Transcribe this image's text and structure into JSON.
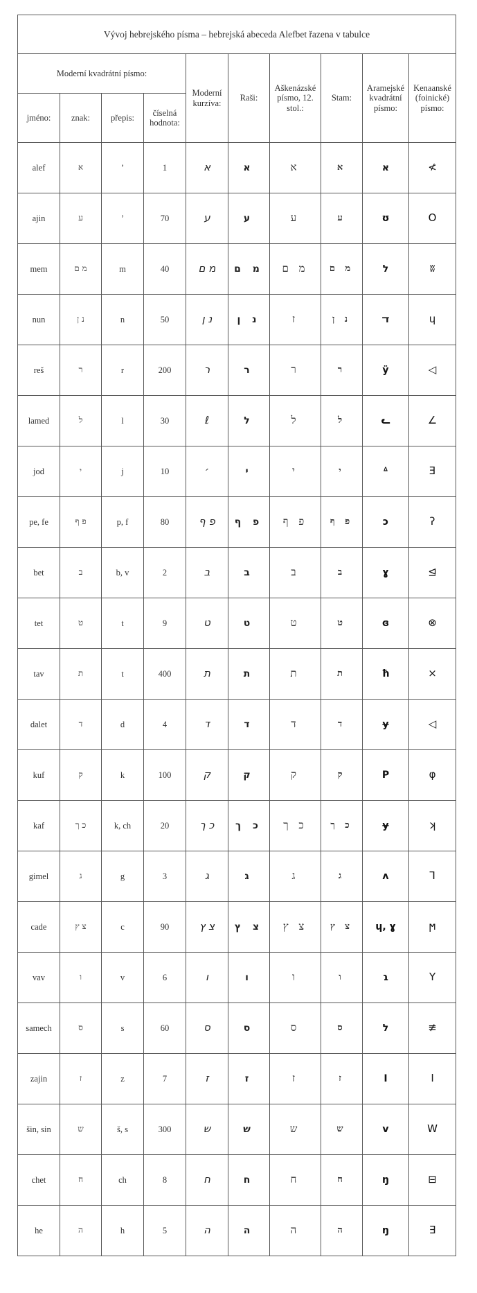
{
  "title": "Vývoj hebrejského písma – hebrejská abeceda Alefbet řazena v tabulce",
  "headers": {
    "group": "Moderní kvadrátní písmo:",
    "name": "jméno:",
    "sign": "znak:",
    "transcription": "přepis:",
    "value": "číselná hodnota:",
    "cursive": "Moderní kurzíva:",
    "rashi": "Raši:",
    "ashkenazi": "Aškenázské písmo, 12. stol.:",
    "stam": "Stam:",
    "aramaic": "Aramejské kvadrátní písmo:",
    "canaanite": "Kenaanské (foinické) písmo:"
  },
  "rows": [
    {
      "name": "alef",
      "sign": "א",
      "tr": "’",
      "value": "1",
      "cursive": "א",
      "rashi": "א",
      "ashkenazi": "א",
      "stam": "א",
      "aramaic": "א",
      "canaanite": "≮"
    },
    {
      "name": "ajin",
      "sign": "ע",
      "tr": "’",
      "value": "70",
      "cursive": "ע",
      "rashi": "ע",
      "ashkenazi": "ע",
      "stam": "ע",
      "aramaic": "ʊ",
      "canaanite": "O"
    },
    {
      "name": "mem",
      "sign": "מ ם",
      "tr": "m",
      "value": "40",
      "cursive": "מ ם",
      "rashi": "מ ם",
      "ashkenazi": "מ ם",
      "stam": "מ ם",
      "aramaic": "ל",
      "canaanite": "ʬ"
    },
    {
      "name": "nun",
      "sign": "נ ן",
      "tr": "n",
      "value": "50",
      "cursive": "נ ן",
      "rashi": "נ ן",
      "ashkenazi": "ז",
      "stam": "נ ן",
      "aramaic": "ﬢ",
      "canaanite": "ɥ"
    },
    {
      "name": "reš",
      "sign": "ר",
      "tr": "r",
      "value": "200",
      "cursive": "ר",
      "rashi": "ר",
      "ashkenazi": "ר",
      "stam": "ר",
      "aramaic": "ÿ",
      "canaanite": "◁"
    },
    {
      "name": "lamed",
      "sign": "ל",
      "tr": "l",
      "value": "30",
      "cursive": "ℓ",
      "rashi": "ל",
      "ashkenazi": "ל",
      "stam": "ל",
      "aramaic": "ᓚ",
      "canaanite": "∠"
    },
    {
      "name": "jod",
      "sign": "י",
      "tr": "j",
      "value": "10",
      "cursive": "׳",
      "rashi": "י",
      "ashkenazi": "י",
      "stam": "י",
      "aramaic": "ᐞ",
      "canaanite": "Ǝ"
    },
    {
      "name": "pe, fe",
      "sign": "פ ף",
      "tr": "p, f",
      "value": "80",
      "cursive": "פ ף",
      "rashi": "פ ף",
      "ashkenazi": "פ ף",
      "stam": "פ ף",
      "aramaic": "ɔ",
      "canaanite": "ʔ"
    },
    {
      "name": "bet",
      "sign": "ב",
      "tr": "b, v",
      "value": "2",
      "cursive": "ב",
      "rashi": "ב",
      "ashkenazi": "ב",
      "stam": "ב",
      "aramaic": "ɣ",
      "canaanite": "⊴"
    },
    {
      "name": "tet",
      "sign": "ט",
      "tr": "t",
      "value": "9",
      "cursive": "ט",
      "rashi": "ט",
      "ashkenazi": "ט",
      "stam": "ט",
      "aramaic": "ɞ",
      "canaanite": "⊗"
    },
    {
      "name": "tav",
      "sign": "ת",
      "tr": "t",
      "value": "400",
      "cursive": "ת",
      "rashi": "ת",
      "ashkenazi": "ת",
      "stam": "ת",
      "aramaic": "ħ",
      "canaanite": "×"
    },
    {
      "name": "dalet",
      "sign": "ד",
      "tr": "d",
      "value": "4",
      "cursive": "ד",
      "rashi": "ד",
      "ashkenazi": "ד",
      "stam": "ד",
      "aramaic": "ɏ",
      "canaanite": "◁"
    },
    {
      "name": "kuf",
      "sign": "ק",
      "tr": "k",
      "value": "100",
      "cursive": "ק",
      "rashi": "ק",
      "ashkenazi": "ק",
      "stam": "ק",
      "aramaic": "Ρ",
      "canaanite": "φ"
    },
    {
      "name": "kaf",
      "sign": "כ ך",
      "tr": "k, ch",
      "value": "20",
      "cursive": "כ ך",
      "rashi": "כ ך",
      "ashkenazi": "כ ך",
      "stam": "כ ך",
      "aramaic": "ɏ",
      "canaanite": "ʞ"
    },
    {
      "name": "gimel",
      "sign": "ג",
      "tr": "g",
      "value": "3",
      "cursive": "ג",
      "rashi": "ג",
      "ashkenazi": "ג",
      "stam": "ג",
      "aramaic": "ʌ",
      "canaanite": "⅂"
    },
    {
      "name": "cade",
      "sign": "צ ץ",
      "tr": "c",
      "value": "90",
      "cursive": "צ ץ",
      "rashi": "צ ץ",
      "ashkenazi": "צ ץ",
      "stam": "צ ץ",
      "aramaic": "ɥ, ɣ",
      "canaanite": "ϻ"
    },
    {
      "name": "vav",
      "sign": "ו",
      "tr": "v",
      "value": "6",
      "cursive": "ו",
      "rashi": "ו",
      "ashkenazi": "ו",
      "stam": "ו",
      "aramaic": "ɿ",
      "canaanite": "Y"
    },
    {
      "name": "samech",
      "sign": "ס",
      "tr": "s",
      "value": "60",
      "cursive": "ס",
      "rashi": "ס",
      "ashkenazi": "ס",
      "stam": "ס",
      "aramaic": "ל",
      "canaanite": "≢"
    },
    {
      "name": "zajin",
      "sign": "ז",
      "tr": "z",
      "value": "7",
      "cursive": "ז",
      "rashi": "ז",
      "ashkenazi": "ז",
      "stam": "ז",
      "aramaic": "I",
      "canaanite": "I"
    },
    {
      "name": "šin, sin",
      "sign": "ש",
      "tr": "š, s",
      "value": "300",
      "cursive": "ש",
      "rashi": "ש",
      "ashkenazi": "ש",
      "stam": "ש",
      "aramaic": "v",
      "canaanite": "W"
    },
    {
      "name": "chet",
      "sign": "ח",
      "tr": "ch",
      "value": "8",
      "cursive": "ח",
      "rashi": "ח",
      "ashkenazi": "ח",
      "stam": "ח",
      "aramaic": "ŋ",
      "canaanite": "⊟"
    },
    {
      "name": "he",
      "sign": "ה",
      "tr": "h",
      "value": "5",
      "cursive": "ה",
      "rashi": "ה",
      "ashkenazi": "ה",
      "stam": "ה",
      "aramaic": "ŋ",
      "canaanite": "∃"
    }
  ]
}
